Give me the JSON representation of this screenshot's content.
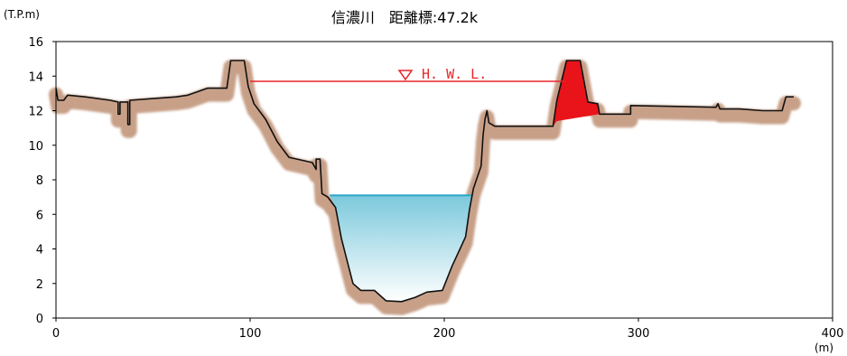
{
  "chart_data": {
    "type": "area",
    "title": "信濃川　距離標:47.2k",
    "ylabel": "(T.P.m)",
    "xlabel": "(m)",
    "xlim": [
      0,
      400
    ],
    "ylim": [
      0,
      16
    ],
    "x_ticks": [
      0,
      100,
      200,
      300,
      400
    ],
    "y_ticks": [
      0,
      2,
      4,
      6,
      8,
      10,
      12,
      14,
      16
    ],
    "hwl": {
      "label": "H. W. L.",
      "elevation": 13.7,
      "x_range": [
        100,
        262
      ]
    },
    "water_level": {
      "elevation": 7.1,
      "x_range": [
        141,
        214
      ]
    },
    "ground_profile": [
      [
        0,
        13.3
      ],
      [
        1,
        12.6
      ],
      [
        4,
        12.6
      ],
      [
        6,
        12.9
      ],
      [
        15,
        12.8
      ],
      [
        28,
        12.6
      ],
      [
        32,
        12.5
      ],
      [
        32,
        11.8
      ],
      [
        33,
        11.8
      ],
      [
        33,
        12.5
      ],
      [
        37,
        12.5
      ],
      [
        37,
        11.2
      ],
      [
        38,
        11.2
      ],
      [
        38,
        12.6
      ],
      [
        50,
        12.7
      ],
      [
        62,
        12.8
      ],
      [
        68,
        12.9
      ],
      [
        78,
        13.3
      ],
      [
        88,
        13.3
      ],
      [
        90,
        14.9
      ],
      [
        97,
        14.9
      ],
      [
        99,
        13.4
      ],
      [
        102,
        12.4
      ],
      [
        108,
        11.5
      ],
      [
        114,
        10.2
      ],
      [
        120,
        9.3
      ],
      [
        132,
        9.0
      ],
      [
        134,
        8.6
      ],
      [
        134,
        9.2
      ],
      [
        136,
        9.2
      ],
      [
        137,
        7.2
      ],
      [
        140,
        7.0
      ],
      [
        144,
        6.4
      ],
      [
        147,
        4.6
      ],
      [
        153,
        2.0
      ],
      [
        157,
        1.6
      ],
      [
        164,
        1.6
      ],
      [
        170,
        1.0
      ],
      [
        178,
        0.95
      ],
      [
        185,
        1.2
      ],
      [
        191,
        1.5
      ],
      [
        199,
        1.6
      ],
      [
        204,
        3.0
      ],
      [
        211,
        4.7
      ],
      [
        213,
        6.3
      ],
      [
        215,
        7.5
      ],
      [
        219,
        8.8
      ],
      [
        220,
        10.6
      ],
      [
        221,
        11.5
      ],
      [
        222,
        12.0
      ],
      [
        223,
        11.3
      ],
      [
        226,
        11.1
      ],
      [
        256,
        11.1
      ],
      [
        258,
        12.6
      ],
      [
        263,
        14.9
      ],
      [
        270,
        14.9
      ],
      [
        274,
        12.5
      ],
      [
        279,
        12.4
      ],
      [
        280,
        11.8
      ],
      [
        296,
        11.8
      ],
      [
        296,
        12.3
      ],
      [
        340,
        12.2
      ],
      [
        341,
        12.4
      ],
      [
        342,
        12.1
      ],
      [
        352,
        12.1
      ],
      [
        364,
        12.0
      ],
      [
        374,
        12.0
      ],
      [
        376,
        12.8
      ],
      [
        380,
        12.8
      ]
    ],
    "embankment_fill": [
      [
        256,
        11.1
      ],
      [
        258,
        12.6
      ],
      [
        263,
        14.9
      ],
      [
        270,
        14.9
      ],
      [
        274,
        12.5
      ],
      [
        279,
        12.4
      ],
      [
        280,
        11.8
      ],
      [
        258,
        11.4
      ]
    ],
    "colors": {
      "soil": "#c8a088",
      "ground_line": "#111111",
      "hwl": "#e8262a",
      "water_top": "#2aa6c9",
      "water_fill_top": "#7cc9dc",
      "water_fill_bottom": "#ffffff",
      "embankment": "#e8141a"
    },
    "grid": false
  }
}
